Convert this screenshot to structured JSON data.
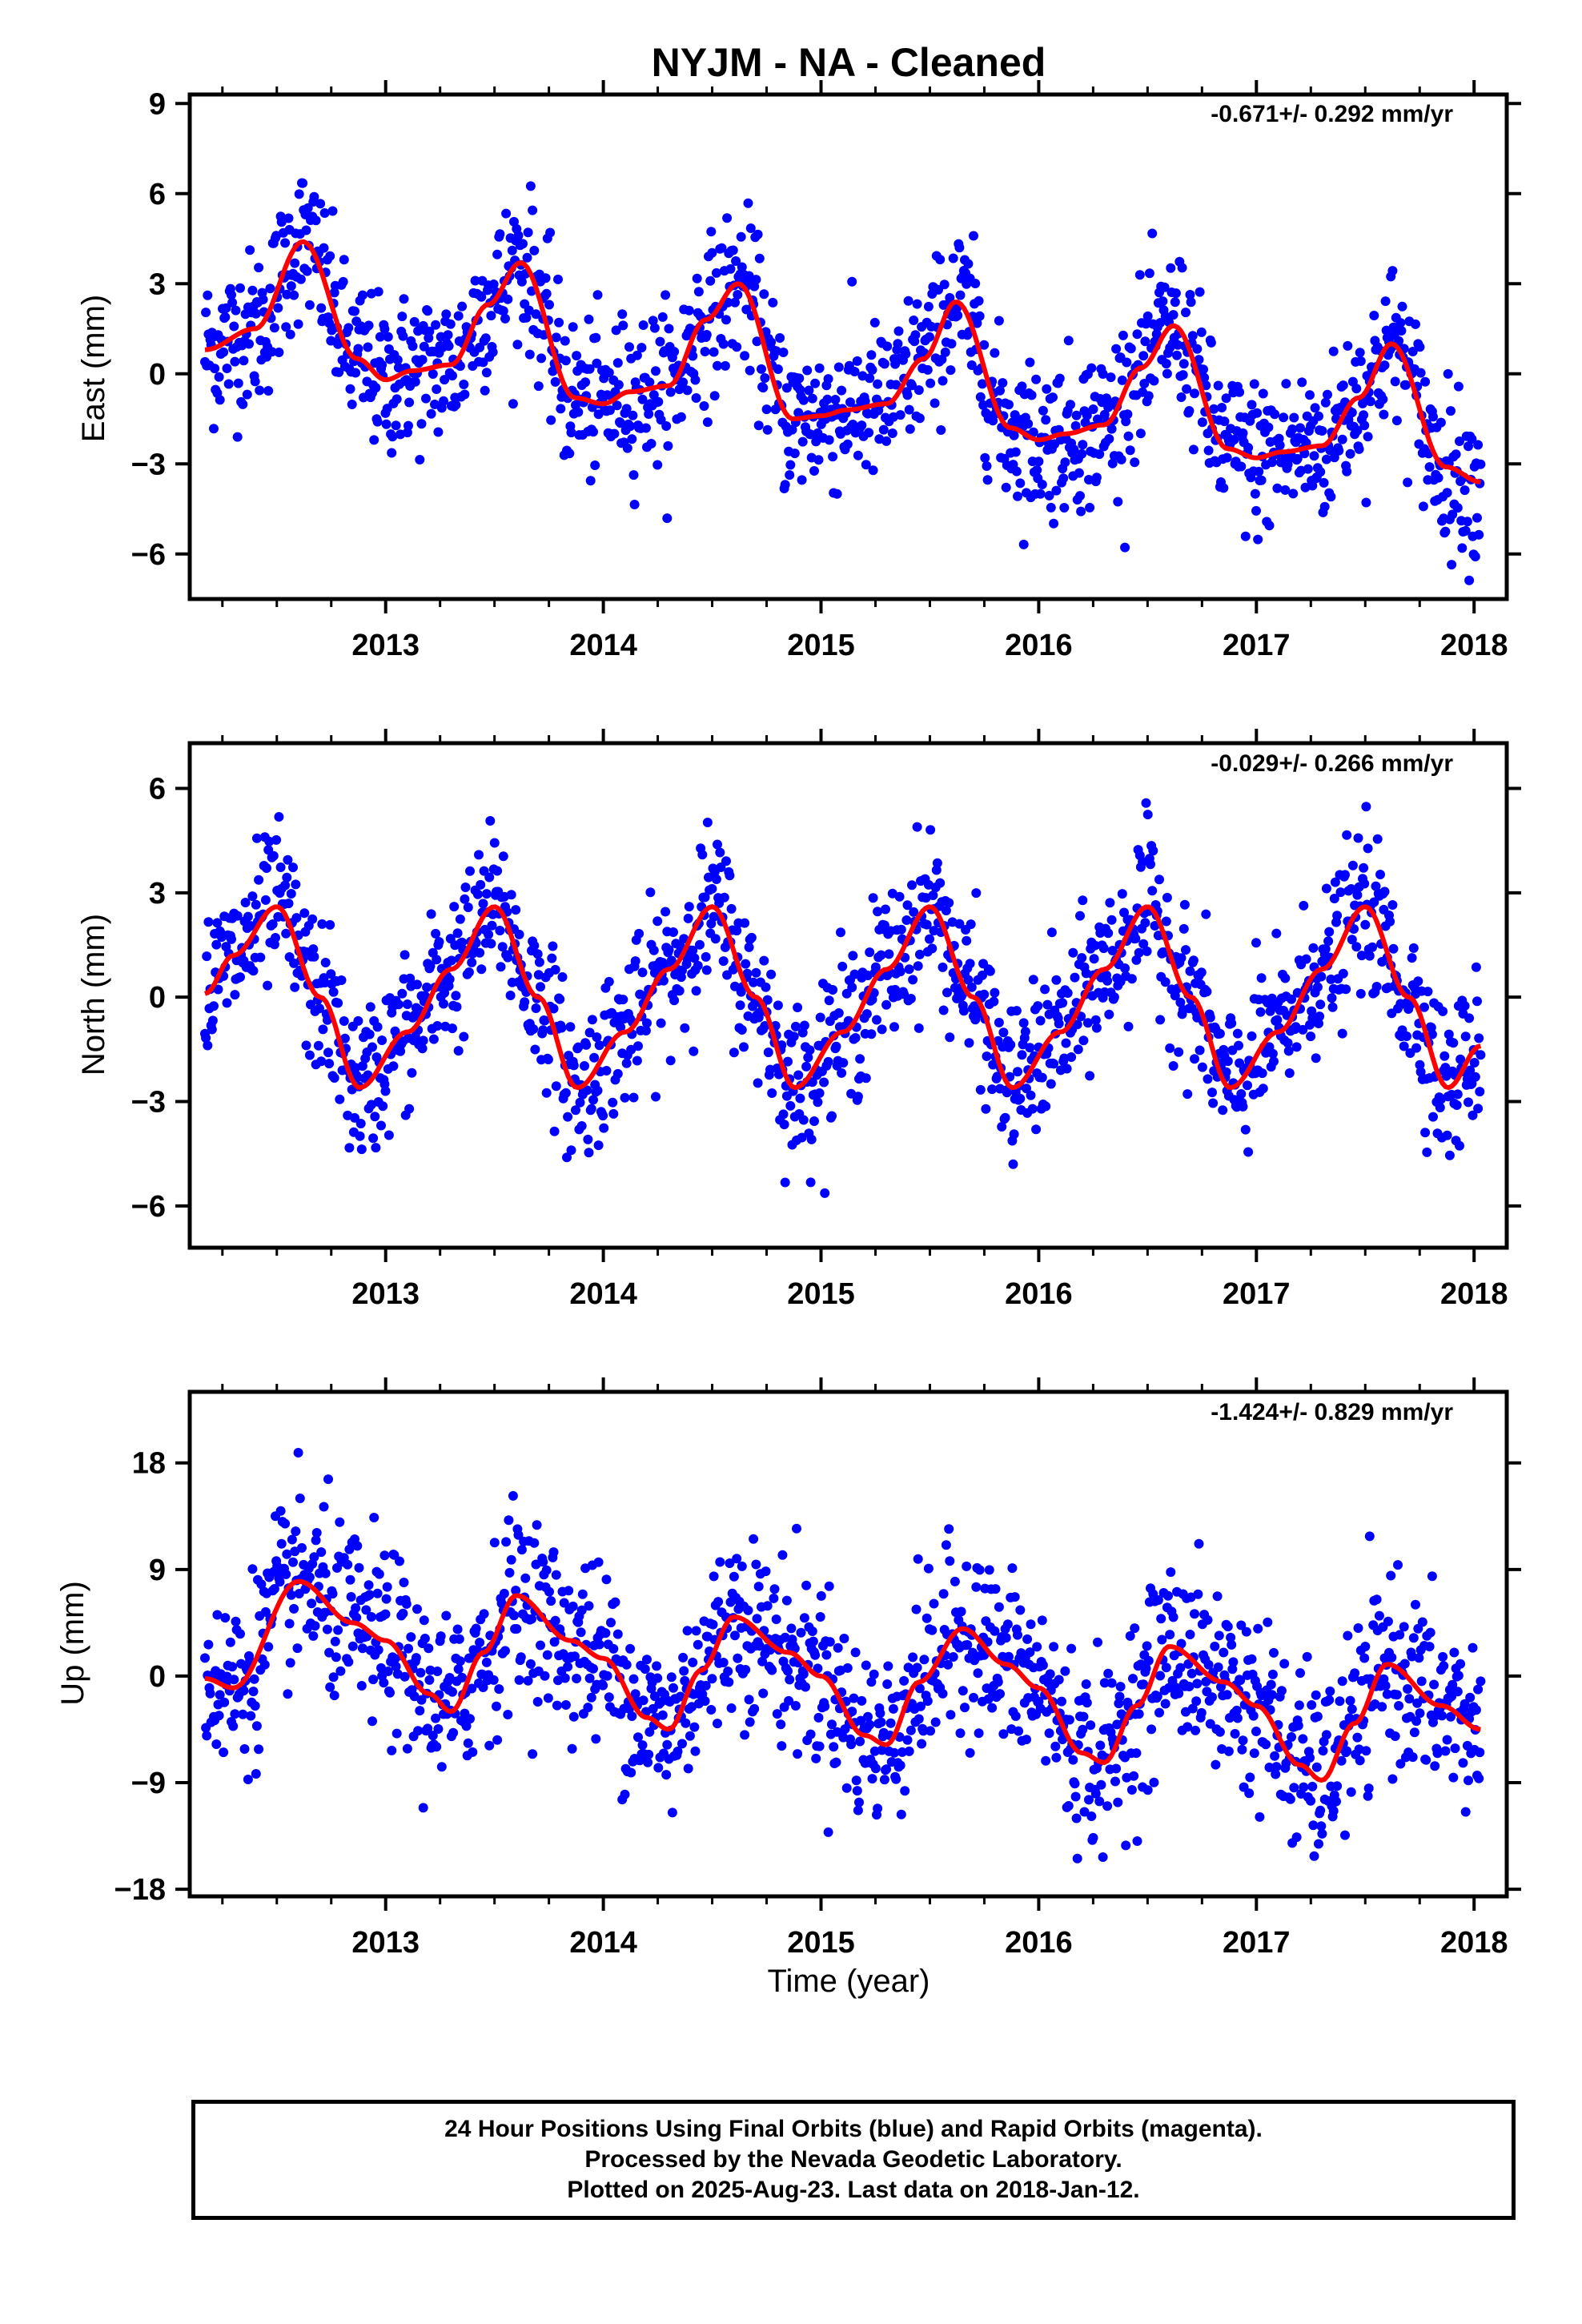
{
  "title": "NYJM  - NA - Cleaned",
  "footer": {
    "line1": "24 Hour Positions Using Final Orbits (blue) and Rapid Orbits (magenta).",
    "line2": "Processed by the Nevada Geodetic Laboratory.",
    "line3": "Plotted on 2025-Aug-23. Last data on 2018-Jan-12."
  },
  "colors": {
    "points": "#0000ff",
    "fit": "#ff0000",
    "frame": "#000000"
  },
  "chart_data": [
    {
      "type": "scatter",
      "ylabel": "East (mm)",
      "xlabel": "",
      "rate_label": "-0.671+/- 0.292 mm/yr",
      "xlim": [
        2012.1,
        2018.15
      ],
      "ylim": [
        -7.5,
        9.3
      ],
      "xticks": [
        2013,
        2014,
        2015,
        2016,
        2017,
        2018
      ],
      "yticks": [
        -6,
        -3,
        0,
        3,
        6,
        9
      ],
      "x_range": [
        2012.17,
        2018.03
      ],
      "fit_x": [
        2012.17,
        2012.4,
        2012.62,
        2012.87,
        2013.0,
        2013.12,
        2013.3,
        2013.47,
        2013.62,
        2013.87,
        2014.0,
        2014.12,
        2014.3,
        2014.47,
        2014.62,
        2014.87,
        2015.0,
        2015.12,
        2015.3,
        2015.47,
        2015.62,
        2015.87,
        2016.0,
        2016.12,
        2016.3,
        2016.47,
        2016.62,
        2016.87,
        2017.0,
        2017.12,
        2017.3,
        2017.47,
        2017.62,
        2017.87,
        2018.03
      ],
      "fit_y": [
        0.8,
        1.5,
        4.4,
        0.5,
        -0.2,
        0.1,
        0.3,
        2.3,
        3.7,
        -0.8,
        -1.0,
        -0.6,
        -0.4,
        1.8,
        3.0,
        -1.5,
        -1.4,
        -1.2,
        -1.0,
        0.5,
        2.4,
        -1.8,
        -2.2,
        -2.0,
        -1.7,
        0.2,
        1.6,
        -2.5,
        -2.8,
        -2.6,
        -2.4,
        -0.8,
        1.0,
        -3.1,
        -3.6
      ],
      "scatter_sigma": 1.3,
      "point_count": 1450
    },
    {
      "type": "scatter",
      "ylabel": "North (mm)",
      "xlabel": "",
      "rate_label": "-0.029+/- 0.266 mm/yr",
      "xlim": [
        2012.1,
        2018.15
      ],
      "ylim": [
        -7.2,
        7.3
      ],
      "xticks": [
        2013,
        2014,
        2015,
        2016,
        2017,
        2018
      ],
      "yticks": [
        -6,
        -3,
        0,
        3,
        6
      ],
      "x_range": [
        2012.17,
        2018.03
      ],
      "fit_x": [
        2012.17,
        2012.3,
        2012.5,
        2012.7,
        2012.88,
        2013.1,
        2013.3,
        2013.5,
        2013.7,
        2013.88,
        2014.1,
        2014.3,
        2014.5,
        2014.7,
        2014.88,
        2015.1,
        2015.3,
        2015.5,
        2015.7,
        2015.88,
        2016.1,
        2016.3,
        2016.5,
        2016.7,
        2016.88,
        2017.1,
        2017.3,
        2017.5,
        2017.7,
        2017.88,
        2018.03
      ],
      "fit_y": [
        0.1,
        1.2,
        2.6,
        0.0,
        -2.6,
        -1.0,
        0.8,
        2.6,
        0.0,
        -2.6,
        -1.0,
        0.8,
        2.6,
        0.0,
        -2.6,
        -1.0,
        0.8,
        2.6,
        0.0,
        -2.6,
        -1.0,
        0.8,
        2.6,
        0.0,
        -2.6,
        -1.0,
        0.8,
        2.6,
        0.0,
        -2.6,
        -1.4
      ],
      "scatter_sigma": 1.1,
      "point_count": 1450
    },
    {
      "type": "scatter",
      "ylabel": "Up (mm)",
      "xlabel": "Time (year)",
      "rate_label": "-1.424+/- 0.829 mm/yr",
      "xlim": [
        2012.1,
        2018.15
      ],
      "ylim": [
        -18.6,
        24.0
      ],
      "xticks": [
        2013,
        2014,
        2015,
        2016,
        2017,
        2018
      ],
      "yticks": [
        -18,
        -9,
        0,
        9,
        18
      ],
      "x_range": [
        2012.17,
        2018.03
      ],
      "fit_x": [
        2012.17,
        2012.3,
        2012.6,
        2012.85,
        2013.0,
        2013.2,
        2013.3,
        2013.45,
        2013.6,
        2013.85,
        2014.0,
        2014.2,
        2014.3,
        2014.45,
        2014.6,
        2014.85,
        2015.0,
        2015.2,
        2015.3,
        2015.45,
        2015.65,
        2015.85,
        2016.0,
        2016.2,
        2016.3,
        2016.45,
        2016.6,
        2016.85,
        2017.0,
        2017.2,
        2017.3,
        2017.45,
        2017.6,
        2017.85,
        2018.03
      ],
      "fit_y": [
        -0.2,
        -1.0,
        8.0,
        4.5,
        3.0,
        -1.5,
        -3.0,
        2.0,
        6.8,
        3.0,
        1.5,
        -3.5,
        -4.5,
        0.5,
        5.0,
        2.0,
        0.0,
        -5.0,
        -5.8,
        -0.5,
        4.0,
        1.0,
        -1.0,
        -6.5,
        -7.3,
        -2.5,
        2.5,
        -0.5,
        -2.5,
        -7.5,
        -8.8,
        -4.0,
        1.0,
        -2.5,
        -4.5
      ],
      "scatter_sigma": 3.8,
      "point_count": 1450
    }
  ]
}
